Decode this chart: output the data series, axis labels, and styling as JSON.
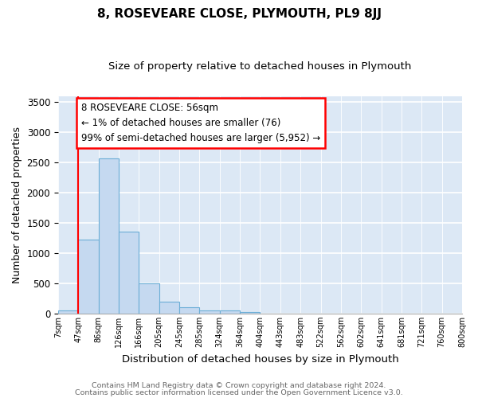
{
  "title": "8, ROSEVEARE CLOSE, PLYMOUTH, PL9 8JJ",
  "subtitle": "Size of property relative to detached houses in Plymouth",
  "xlabel": "Distribution of detached houses by size in Plymouth",
  "ylabel": "Number of detached properties",
  "bar_values": [
    50,
    1230,
    2570,
    1350,
    500,
    190,
    110,
    50,
    50,
    30,
    0,
    0,
    0,
    0,
    0,
    0,
    0,
    0,
    0,
    0
  ],
  "bar_labels": [
    "7sqm",
    "47sqm",
    "86sqm",
    "126sqm",
    "166sqm",
    "205sqm",
    "245sqm",
    "285sqm",
    "324sqm",
    "364sqm",
    "404sqm",
    "443sqm",
    "483sqm",
    "522sqm",
    "562sqm",
    "602sqm",
    "641sqm",
    "681sqm",
    "721sqm",
    "760sqm",
    "800sqm"
  ],
  "ylim": [
    0,
    3600
  ],
  "yticks": [
    0,
    500,
    1000,
    1500,
    2000,
    2500,
    3000,
    3500
  ],
  "bar_color": "#c5d9f0",
  "bar_edge_color": "#6baed6",
  "red_line_x": 1.0,
  "annotation_title": "8 ROSEVEARE CLOSE: 56sqm",
  "annotation_line1": "← 1% of detached houses are smaller (76)",
  "annotation_line2": "99% of semi-detached houses are larger (5,952) →",
  "footer1": "Contains HM Land Registry data © Crown copyright and database right 2024.",
  "footer2": "Contains public sector information licensed under the Open Government Licence v3.0.",
  "fig_bg_color": "#ffffff",
  "plot_bg_color": "#dce8f5"
}
